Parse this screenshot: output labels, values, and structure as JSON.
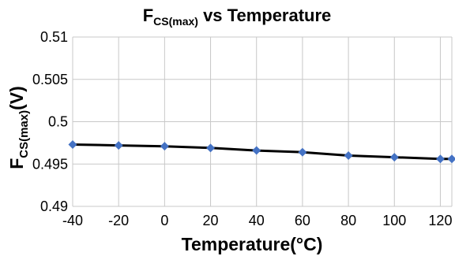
{
  "chart_data": {
    "type": "line",
    "title_main": "F",
    "title_sub": "CS(max)",
    "title_rest": " vs Temperature",
    "xlabel": "Temperature(°C)",
    "ylabel_main": "F",
    "ylabel_sub": "CS(max)",
    "ylabel_rest": "(V)",
    "xlim": [
      -40,
      125
    ],
    "ylim": [
      0.49,
      0.51
    ],
    "x_ticks": [
      -40,
      -20,
      0,
      20,
      40,
      60,
      80,
      100,
      120
    ],
    "x_tick_labels": [
      "-40",
      "-20",
      "0",
      "20",
      "40",
      "60",
      "80",
      "100",
      "120"
    ],
    "y_ticks": [
      0.49,
      0.495,
      0.5,
      0.505,
      0.51
    ],
    "y_tick_labels": [
      "0.49",
      "0.495",
      "0.5",
      "0.505",
      "0.51"
    ],
    "grid": true,
    "series": [
      {
        "x": [
          -40,
          -20,
          0,
          20,
          40,
          60,
          80,
          100,
          120,
          125
        ],
        "values": [
          0.4973,
          0.4972,
          0.4971,
          0.4969,
          0.4966,
          0.4964,
          0.496,
          0.4958,
          0.4956,
          0.4956
        ],
        "line_color": "#000000",
        "marker_color": "#4472C4"
      }
    ]
  }
}
